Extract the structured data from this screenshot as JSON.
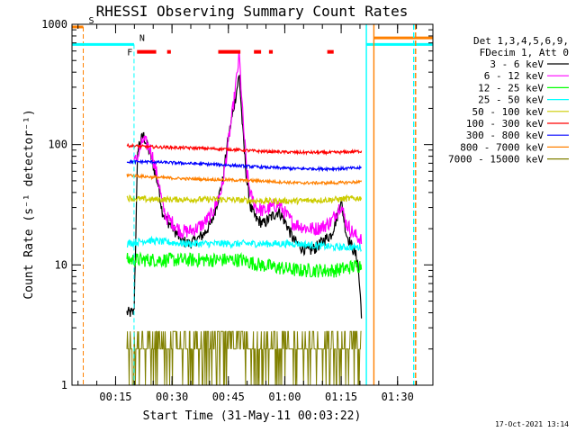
{
  "chart_data": {
    "type": "line",
    "title": "RHESSI Observing Summary Count Rates",
    "xlabel": "Start Time (31-May-11 00:03:22)",
    "ylabel": "Count Rate (s⁻¹ detector⁻¹)",
    "y_scale": "log",
    "ylim": [
      1,
      1000
    ],
    "x_unit": "minutes since 00:03:22",
    "xlim": [
      0,
      96
    ],
    "x_ticks": [
      {
        "label": "00:15",
        "x": 11.6
      },
      {
        "label": "00:30",
        "x": 26.6
      },
      {
        "label": "00:45",
        "x": 41.6
      },
      {
        "label": "01:00",
        "x": 56.6
      },
      {
        "label": "01:15",
        "x": 71.6
      },
      {
        "label": "01:30",
        "x": 86.6
      }
    ],
    "y_ticks": [
      {
        "label": "1",
        "value": 1
      },
      {
        "label": "10",
        "value": 10
      },
      {
        "label": "100",
        "value": 100
      },
      {
        "label": "1000",
        "value": 1000
      }
    ],
    "legend_header": [
      "Det 1,3,4,5,6,9,",
      "FDecim 1, Att 0"
    ],
    "legend_position": "right",
    "series": [
      {
        "name": "3 - 6 keV",
        "color": "#000000",
        "x": [
          14.6,
          16.5,
          17.5,
          19,
          21,
          23,
          24,
          25,
          27,
          29,
          31,
          33,
          35,
          37,
          38,
          40,
          41.5,
          43,
          44.5,
          45.5,
          46.5,
          47.5,
          49,
          51,
          53,
          55,
          57,
          59,
          61,
          63,
          65,
          67,
          69,
          70.5,
          71.5,
          73,
          75,
          76,
          77
        ],
        "y": [
          4,
          4,
          95,
          120,
          80,
          45,
          28,
          24,
          20,
          16,
          15,
          16,
          18,
          22,
          28,
          48,
          110,
          200,
          380,
          120,
          50,
          30,
          24,
          22,
          25,
          28,
          22,
          16,
          14,
          13,
          14,
          16,
          18,
          25,
          35,
          18,
          13,
          11,
          4
        ]
      },
      {
        "name": "6 - 12 keV",
        "color": "#ff00ff",
        "x": [
          16.5,
          17.5,
          19,
          21,
          23,
          24,
          25,
          27,
          29,
          31,
          33,
          35,
          37,
          38,
          40,
          41.5,
          43,
          44.5,
          45.5,
          46.5,
          47.5,
          49,
          51,
          53,
          55,
          57,
          59,
          61,
          63,
          65,
          67,
          69,
          70.5,
          71.5,
          73,
          75,
          77
        ],
        "y": [
          70,
          80,
          110,
          90,
          50,
          32,
          25,
          22,
          19,
          19,
          20,
          22,
          26,
          30,
          45,
          100,
          220,
          550,
          160,
          60,
          38,
          30,
          28,
          30,
          32,
          26,
          22,
          21,
          20,
          20,
          21,
          23,
          28,
          32,
          22,
          18,
          16
        ]
      },
      {
        "name": "12 - 25 keV",
        "color": "#00ff00",
        "x": [
          14.6,
          20,
          30,
          40,
          45,
          50,
          60,
          70,
          77
        ],
        "y": [
          11,
          11,
          11,
          11,
          11,
          10,
          9,
          9,
          10
        ]
      },
      {
        "name": "25 - 50 keV",
        "color": "#00ffff",
        "x": [
          14.6,
          20,
          30,
          40,
          45,
          50,
          60,
          70,
          77
        ],
        "y": [
          15,
          16,
          15,
          15,
          15,
          15,
          15,
          14,
          14
        ]
      },
      {
        "name": "50 - 100 keV",
        "color": "#cccc00",
        "x": [
          14.6,
          20,
          30,
          40,
          50,
          60,
          70,
          77
        ],
        "y": [
          36,
          35,
          35,
          35,
          34,
          34,
          35,
          36
        ]
      },
      {
        "name": "100 - 300 keV",
        "color": "#ff0000",
        "x": [
          14.6,
          20,
          30,
          40,
          50,
          60,
          70,
          77
        ],
        "y": [
          98,
          96,
          94,
          92,
          88,
          86,
          86,
          88
        ]
      },
      {
        "name": "300 - 800 keV",
        "color": "#0000ff",
        "x": [
          14.6,
          20,
          30,
          40,
          50,
          60,
          70,
          77
        ],
        "y": [
          72,
          72,
          70,
          68,
          65,
          63,
          63,
          64
        ]
      },
      {
        "name": "800 - 7000 keV",
        "color": "#ff8000",
        "x": [
          14.6,
          20,
          30,
          40,
          50,
          60,
          70,
          77
        ],
        "y": [
          56,
          54,
          52,
          51,
          50,
          48,
          48,
          49
        ]
      },
      {
        "name": "7000 - 15000 keV",
        "color": "#808000",
        "x": [
          14.6,
          25,
          30,
          35,
          40,
          45,
          50,
          60,
          70,
          77
        ],
        "y": [
          2,
          2,
          2,
          2.5,
          2.5,
          2,
          2,
          2,
          2,
          2
        ]
      }
    ],
    "flags": [
      {
        "label": "S",
        "color": "#ff8000",
        "x_line": 3,
        "level": 950
      },
      {
        "label": "N",
        "color": "#00ffff",
        "x_line": 16.5,
        "level": 680
      },
      {
        "label": "F",
        "color": "#ff0000",
        "level": 590,
        "segments": [
          [
            17.3,
            22.4
          ],
          [
            25.3,
            26.3
          ],
          [
            38.9,
            44.8
          ],
          [
            48.4,
            50.3
          ],
          [
            52.4,
            53.4
          ],
          [
            67.9,
            69.6
          ]
        ]
      }
    ],
    "saa_lines": [
      {
        "color": "#00ffff",
        "x": 78.3,
        "level": 680
      },
      {
        "color": "#ff8000",
        "x": 80.3,
        "level": 770
      },
      {
        "color": "#00ffff",
        "x": 90.9
      },
      {
        "color": "#ff8000",
        "x": 91.4
      }
    ]
  },
  "footer": {
    "timestamp": "17-Oct-2021 13:14"
  }
}
